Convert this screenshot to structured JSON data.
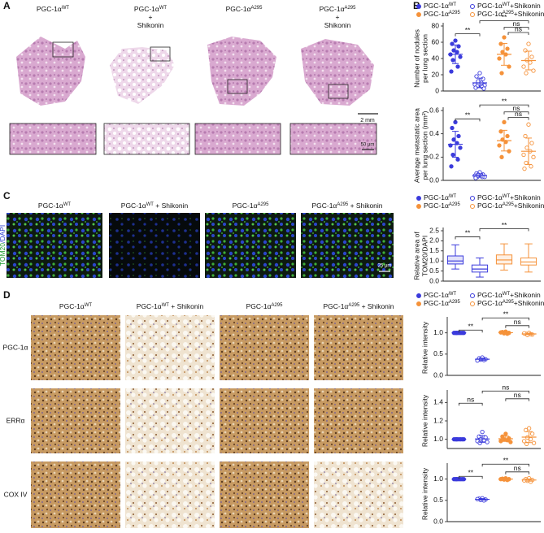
{
  "panels": {
    "a": "A",
    "b": "B",
    "c": "C",
    "d": "D"
  },
  "panel_a": {
    "columns": [
      [
        [
          {
            "text": "PGC-1α"
          },
          {
            "text": "WT",
            "sup": true
          }
        ]
      ],
      [
        [
          {
            "text": "PGC-1α"
          },
          {
            "text": "WT",
            "sup": true
          }
        ],
        [
          {
            "text": "+"
          }
        ],
        [
          {
            "text": "Shikonin"
          }
        ]
      ],
      [
        [
          {
            "text": "PGC-1α"
          },
          {
            "text": "A295",
            "sup": true
          }
        ]
      ],
      [
        [
          {
            "text": "PGC-1α"
          },
          {
            "text": "A295",
            "sup": true
          }
        ],
        [
          {
            "text": "+"
          }
        ],
        [
          {
            "text": "Shikonin"
          }
        ]
      ]
    ],
    "scale_overview": "2 mm",
    "scale_zoom": "50 μm"
  },
  "panel_c": {
    "columns": [
      [
        [
          {
            "text": "PGC-1α"
          },
          {
            "text": "WT",
            "sup": true
          }
        ]
      ],
      [
        [
          {
            "text": "PGC-1α"
          },
          {
            "text": "WT",
            "sup": true
          },
          {
            "text": " + Shikonin"
          }
        ]
      ],
      [
        [
          {
            "text": "PGC-1α"
          },
          {
            "text": "A295",
            "sup": true
          }
        ]
      ],
      [
        [
          {
            "text": "PGC-1α"
          },
          {
            "text": "A295",
            "sup": true
          },
          {
            "text": " + Shikonin"
          }
        ]
      ]
    ],
    "stain": [
      {
        "text": "TOM20",
        "color": "#1c9b2c"
      },
      {
        "text": "/DAPI",
        "color": "#2a3ccf"
      }
    ],
    "scale": "25 μm"
  },
  "panel_d": {
    "columns": [
      [
        [
          {
            "text": "PGC-1α"
          },
          {
            "text": "WT",
            "sup": true
          }
        ]
      ],
      [
        [
          {
            "text": "PGC-1α"
          },
          {
            "text": "WT",
            "sup": true
          },
          {
            "text": " + Shikonin"
          }
        ]
      ],
      [
        [
          {
            "text": "PGC-1α"
          },
          {
            "text": "A295",
            "sup": true
          }
        ]
      ],
      [
        [
          {
            "text": "PGC-1α"
          },
          {
            "text": "A295",
            "sup": true
          },
          {
            "text": " + Shikonin"
          }
        ]
      ]
    ],
    "rows": [
      "PGC-1α",
      "ERRα",
      "COX IV"
    ]
  },
  "chart_data": [
    {
      "type": "scatter",
      "legend": "top",
      "ylabel": [
        "Number of nodules",
        "per lung section"
      ],
      "ylim": [
        0,
        80
      ],
      "yticks": [
        0,
        20,
        40,
        60,
        80
      ],
      "annotations": [
        "**",
        "**",
        "ns",
        "ns"
      ],
      "series": [
        {
          "name": [
            {
              "text": "PGC-1α"
            },
            {
              "text": "WT",
              "sup": true
            }
          ],
          "color": "#3b3bdc",
          "marker": "filled",
          "values": [
            62,
            58,
            55,
            50,
            48,
            45,
            42,
            38,
            30,
            24
          ]
        },
        {
          "name": [
            {
              "text": "PGC-1α"
            },
            {
              "text": "WT",
              "sup": true
            },
            {
              "text": "+Shikonin"
            }
          ],
          "color": "#3b3bdc",
          "marker": "open",
          "values": [
            22,
            18,
            15,
            12,
            10,
            8,
            7,
            6,
            5,
            4,
            3
          ]
        },
        {
          "name": [
            {
              "text": "PGC-1α"
            },
            {
              "text": "A295",
              "sup": true
            }
          ],
          "color": "#f5923a",
          "marker": "filled",
          "values": [
            66,
            58,
            52,
            48,
            45,
            40,
            30,
            22
          ]
        },
        {
          "name": [
            {
              "text": "PGC-1α"
            },
            {
              "text": "A295",
              "sup": true
            },
            {
              "text": "+Shikonin"
            }
          ],
          "color": "#f5923a",
          "marker": "open",
          "values": [
            58,
            50,
            42,
            38,
            35,
            30,
            25,
            22
          ]
        }
      ]
    },
    {
      "type": "scatter",
      "ylabel": [
        "Average metastatic area",
        "per lung section (mm²)"
      ],
      "ylim": [
        0,
        0.6
      ],
      "yticks": [
        {
          "value": 0,
          "label": "0.0"
        },
        0.2,
        0.4,
        0.6
      ],
      "annotations": [
        "**",
        "**",
        "ns",
        "ns"
      ],
      "series": [
        {
          "name": [
            {
              "text": "PGC-1α"
            },
            {
              "text": "WT",
              "sup": true
            }
          ],
          "color": "#3b3bdc",
          "marker": "filled",
          "values": [
            0.5,
            0.45,
            0.38,
            0.35,
            0.32,
            0.3,
            0.28,
            0.22,
            0.18,
            0.12
          ]
        },
        {
          "name": [
            {
              "text": "PGC-1α"
            },
            {
              "text": "WT",
              "sup": true
            },
            {
              "text": "+Shikonin"
            }
          ],
          "color": "#3b3bdc",
          "marker": "open",
          "values": [
            0.07,
            0.06,
            0.05,
            0.05,
            0.04,
            0.04,
            0.03,
            0.03,
            0.03,
            0.02
          ]
        },
        {
          "name": [
            {
              "text": "PGC-1α"
            },
            {
              "text": "A295",
              "sup": true
            }
          ],
          "color": "#f5923a",
          "marker": "filled",
          "values": [
            0.5,
            0.42,
            0.38,
            0.35,
            0.33,
            0.3,
            0.25,
            0.2
          ]
        },
        {
          "name": [
            {
              "text": "PGC-1α"
            },
            {
              "text": "A295",
              "sup": true
            },
            {
              "text": "+Shikonin"
            }
          ],
          "color": "#f5923a",
          "marker": "open",
          "values": [
            0.48,
            0.38,
            0.32,
            0.28,
            0.25,
            0.22,
            0.2,
            0.15,
            0.12,
            0.1
          ]
        }
      ]
    },
    {
      "type": "box",
      "legend": "top",
      "ylabel": [
        "Relative area of",
        "TOM20/DAPI"
      ],
      "ylim": [
        0,
        2.5
      ],
      "yticks": [
        {
          "value": 0,
          "label": "0.0"
        },
        0.5,
        {
          "value": 1,
          "label": "1.0"
        },
        1.5,
        {
          "value": 2,
          "label": "2.0"
        },
        2.5
      ],
      "annotations": [
        "**",
        "**"
      ],
      "series": [
        {
          "name": [
            {
              "text": "PGC-1α"
            },
            {
              "text": "WT",
              "sup": true
            }
          ],
          "color": "#3b3bdc",
          "marker": "filled",
          "box": {
            "min": 0.6,
            "q1": 0.85,
            "median": 1.0,
            "q3": 1.25,
            "max": 1.8
          }
        },
        {
          "name": [
            {
              "text": "PGC-1α"
            },
            {
              "text": "WT",
              "sup": true
            },
            {
              "text": "+Shikonin"
            }
          ],
          "color": "#3b3bdc",
          "marker": "open",
          "box": {
            "min": 0.2,
            "q1": 0.45,
            "median": 0.6,
            "q3": 0.8,
            "max": 1.15
          }
        },
        {
          "name": [
            {
              "text": "PGC-1α"
            },
            {
              "text": "A295",
              "sup": true
            }
          ],
          "color": "#f5923a",
          "marker": "filled",
          "box": {
            "min": 0.55,
            "q1": 0.85,
            "median": 1.05,
            "q3": 1.3,
            "max": 1.85
          }
        },
        {
          "name": [
            {
              "text": "PGC-1α"
            },
            {
              "text": "A295",
              "sup": true
            },
            {
              "text": "+Shikonin"
            }
          ],
          "color": "#f5923a",
          "marker": "open",
          "box": {
            "min": 0.45,
            "q1": 0.8,
            "median": 0.95,
            "q3": 1.15,
            "max": 1.85
          }
        }
      ]
    },
    {
      "type": "scatter",
      "legend": "top",
      "ylabel": [
        "Relative intensity"
      ],
      "ylim": [
        0,
        1.3
      ],
      "yticks": [
        {
          "value": 0,
          "label": "0.0"
        },
        0.5,
        {
          "value": 1,
          "label": "1.0"
        }
      ],
      "annotations": [
        "**",
        "**",
        "ns"
      ],
      "series": [
        {
          "name": [
            {
              "text": "PGC-1α"
            },
            {
              "text": "WT",
              "sup": true
            }
          ],
          "color": "#3b3bdc",
          "marker": "filled",
          "values": [
            1,
            1,
            1,
            1,
            1,
            1,
            1,
            1
          ]
        },
        {
          "name": [
            {
              "text": "PGC-1α"
            },
            {
              "text": "WT",
              "sup": true
            },
            {
              "text": "+Shikonin"
            }
          ],
          "color": "#3b3bdc",
          "marker": "open",
          "values": [
            0.42,
            0.4,
            0.38,
            0.37,
            0.36,
            0.35
          ]
        },
        {
          "name": [
            {
              "text": "PGC-1α"
            },
            {
              "text": "A295",
              "sup": true
            }
          ],
          "color": "#f5923a",
          "marker": "filled",
          "values": [
            1.03,
            1.02,
            1.0,
            0.99,
            0.98,
            1.01
          ]
        },
        {
          "name": [
            {
              "text": "PGC-1α"
            },
            {
              "text": "A295",
              "sup": true
            },
            {
              "text": "+Shikonin"
            }
          ],
          "color": "#f5923a",
          "marker": "open",
          "values": [
            1.0,
            0.98,
            0.96,
            0.95,
            0.97,
            0.99
          ]
        }
      ]
    },
    {
      "type": "scatter",
      "ylabel": [
        "Relative intensity"
      ],
      "ylim": [
        0.9,
        1.5
      ],
      "yticks": [
        {
          "value": 1,
          "label": "1.0"
        },
        1.2,
        1.4
      ],
      "annotations": [
        "ns",
        "ns",
        "ns"
      ],
      "series": [
        {
          "name": [
            {
              "text": "PGC-1α"
            },
            {
              "text": "WT",
              "sup": true
            }
          ],
          "color": "#3b3bdc",
          "marker": "filled",
          "values": [
            1,
            1,
            1,
            1,
            1,
            1,
            1,
            1
          ]
        },
        {
          "name": [
            {
              "text": "PGC-1α"
            },
            {
              "text": "WT",
              "sup": true
            },
            {
              "text": "+Shikonin"
            }
          ],
          "color": "#3b3bdc",
          "marker": "open",
          "values": [
            1.08,
            1.03,
            1.02,
            1.0,
            0.99,
            0.98,
            0.97,
            0.96
          ]
        },
        {
          "name": [
            {
              "text": "PGC-1α"
            },
            {
              "text": "A295",
              "sup": true
            }
          ],
          "color": "#f5923a",
          "marker": "filled",
          "values": [
            1.06,
            1.03,
            1.01,
            1.0,
            0.99,
            0.98,
            0.97
          ]
        },
        {
          "name": [
            {
              "text": "PGC-1α"
            },
            {
              "text": "A295",
              "sup": true
            },
            {
              "text": "+Shikonin"
            }
          ],
          "color": "#f5923a",
          "marker": "open",
          "values": [
            1.12,
            1.1,
            1.06,
            1.02,
            1.0,
            0.98,
            0.96,
            0.95
          ]
        }
      ]
    },
    {
      "type": "scatter",
      "ylabel": [
        "Relative intensity"
      ],
      "ylim": [
        0,
        1.3
      ],
      "yticks": [
        {
          "value": 0,
          "label": "0.0"
        },
        0.5,
        {
          "value": 1,
          "label": "1.0"
        }
      ],
      "annotations": [
        "**",
        "**",
        "ns"
      ],
      "series": [
        {
          "name": [
            {
              "text": "PGC-1α"
            },
            {
              "text": "WT",
              "sup": true
            }
          ],
          "color": "#3b3bdc",
          "marker": "filled",
          "values": [
            1,
            1,
            1,
            1,
            1,
            1,
            1,
            1
          ]
        },
        {
          "name": [
            {
              "text": "PGC-1α"
            },
            {
              "text": "WT",
              "sup": true
            },
            {
              "text": "+Shikonin"
            }
          ],
          "color": "#3b3bdc",
          "marker": "open",
          "values": [
            0.55,
            0.54,
            0.52,
            0.51,
            0.5,
            0.53
          ]
        },
        {
          "name": [
            {
              "text": "PGC-1α"
            },
            {
              "text": "A295",
              "sup": true
            }
          ],
          "color": "#f5923a",
          "marker": "filled",
          "values": [
            1.02,
            1.01,
            1.0,
            0.99,
            0.98,
            1.0
          ]
        },
        {
          "name": [
            {
              "text": "PGC-1α"
            },
            {
              "text": "A295",
              "sup": true
            },
            {
              "text": "+Shikonin"
            }
          ],
          "color": "#f5923a",
          "marker": "open",
          "values": [
            1.02,
            1.0,
            0.98,
            0.96,
            0.94,
            0.97
          ]
        }
      ]
    }
  ]
}
